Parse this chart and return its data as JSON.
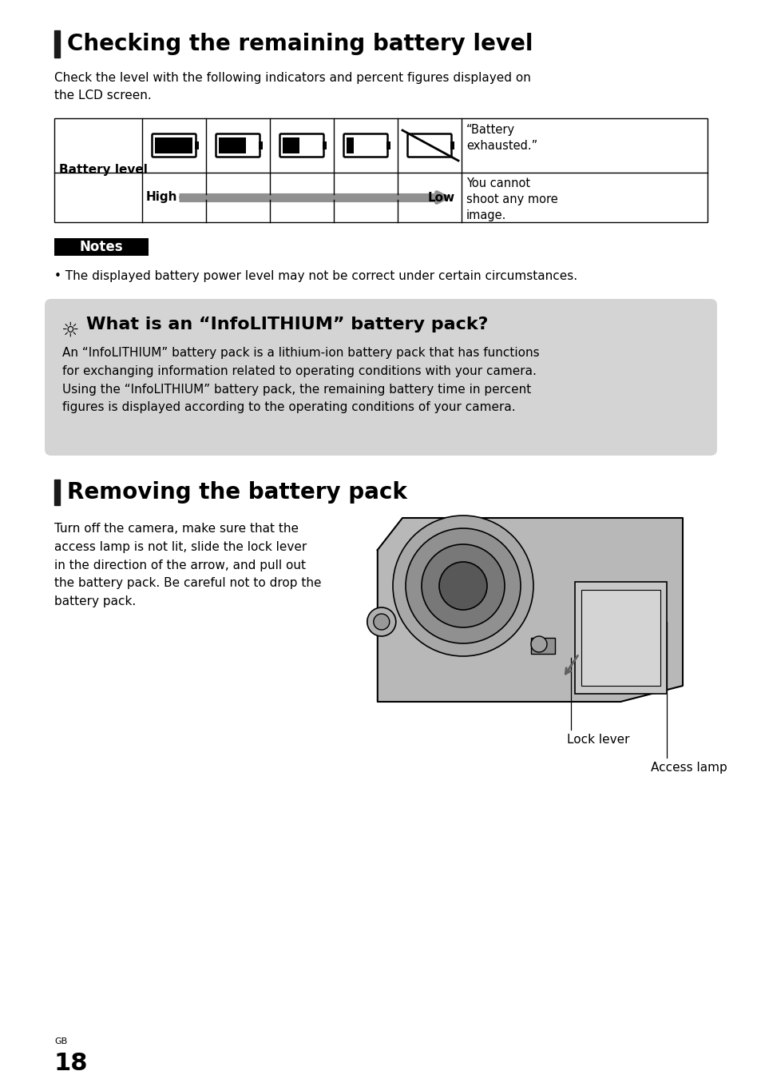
{
  "bg_color": "#ffffff",
  "section1_title": "Checking the remaining battery level",
  "section1_subtitle": "Check the level with the following indicators and percent figures displayed on\nthe LCD screen.",
  "battery_exhausted_text": "“Battery\nexhausted.”",
  "battery_level_label": "Battery level",
  "high_label": "High",
  "low_label": "Low",
  "arrow_color": "#909090",
  "cannot_shoot_text": "You cannot\nshoot any more\nimage.",
  "notes_label": "Notes",
  "notes_bg": "#000000",
  "notes_text_color": "#ffffff",
  "note_bullet": "• The displayed battery power level may not be correct under certain circumstances.",
  "info_box_bg": "#d4d4d4",
  "info_title": "What is an “InfoLITHIUM” battery pack?",
  "info_body": "An “InfoLITHIUM” battery pack is a lithium-ion battery pack that has functions\nfor exchanging information related to operating conditions with your camera.\nUsing the “InfoLITHIUM” battery pack, the remaining battery time in percent\nfigures is displayed according to the operating conditions of your camera.",
  "section2_title": "Removing the battery pack",
  "section2_body": "Turn off the camera, make sure that the\naccess lamp is not lit, slide the lock lever\nin the direction of the arrow, and pull out\nthe battery pack. Be careful not to drop the\nbattery pack.",
  "lock_lever_label": "Lock lever",
  "access_lamp_label": "Access lamp",
  "page_num": "18",
  "page_gb": "GB",
  "section_bar_color": "#1a1a1a",
  "table_border_color": "#000000"
}
